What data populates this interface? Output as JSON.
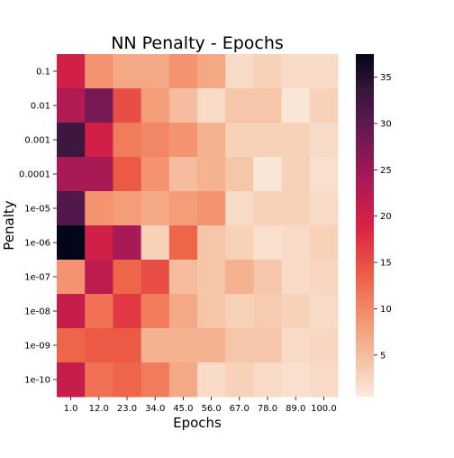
{
  "chart_data": {
    "type": "heatmap",
    "title": "NN Penalty - Epochs",
    "xlabel": "Epochs",
    "ylabel": "Penalty",
    "x_categories": [
      "1.0",
      "12.0",
      "23.0",
      "34.0",
      "45.0",
      "56.0",
      "67.0",
      "78.0",
      "89.0",
      "100.0"
    ],
    "y_categories": [
      "0.1",
      "0.01",
      "0.001",
      "0.0001",
      "1e-05",
      "1e-06",
      "1e-07",
      "1e-08",
      "1e-09",
      "1e-10"
    ],
    "values": [
      [
        20,
        9,
        7,
        7,
        9,
        7,
        2,
        3,
        2,
        2
      ],
      [
        23,
        28,
        15,
        8,
        5,
        2,
        4,
        4,
        1,
        3
      ],
      [
        33,
        20,
        11,
        10,
        9,
        6,
        3,
        3,
        3,
        2
      ],
      [
        24,
        24,
        14,
        9,
        5,
        6,
        4,
        1,
        3,
        1.5
      ],
      [
        31,
        9,
        8,
        7,
        8,
        9,
        2,
        3,
        3,
        2
      ],
      [
        38,
        20,
        24,
        3,
        13,
        4,
        3,
        1.5,
        2,
        3
      ],
      [
        9,
        22,
        13,
        15,
        5,
        4,
        6,
        4,
        2,
        2.5
      ],
      [
        21,
        12,
        17,
        11,
        7,
        4,
        3,
        3.5,
        3,
        2
      ],
      [
        13,
        14,
        14,
        6,
        6,
        6,
        4,
        4,
        2,
        2.5
      ],
      [
        21,
        12,
        13,
        11,
        7,
        2,
        3,
        2,
        1.5,
        2
      ]
    ],
    "colorbar": {
      "min": 0.5,
      "max": 37.5,
      "ticks": [
        5,
        10,
        15,
        20,
        25,
        30,
        35
      ]
    },
    "colormap": "rocket_r",
    "grid": false
  }
}
